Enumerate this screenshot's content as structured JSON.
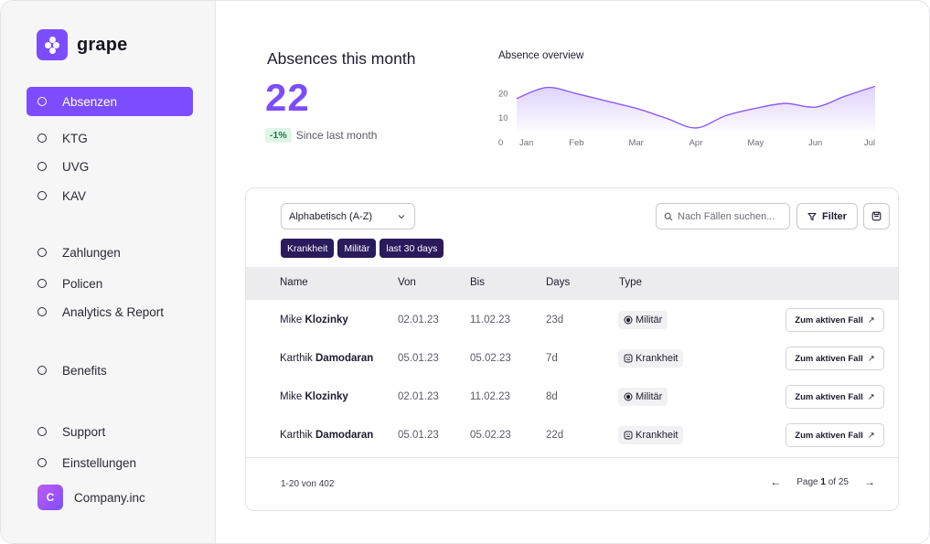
{
  "brand": {
    "name": "grape"
  },
  "sidebar": {
    "items": [
      {
        "label": "Absenzen",
        "active": true
      },
      {
        "label": "KTG"
      },
      {
        "label": "UVG"
      },
      {
        "label": "KAV"
      },
      {
        "label": "Zahlungen"
      },
      {
        "label": "Policen"
      },
      {
        "label": "Analytics & Report"
      },
      {
        "label": "Benefits"
      },
      {
        "label": "Support"
      },
      {
        "label": "Einstellungen"
      }
    ],
    "company": {
      "initial": "C",
      "name": "Company.inc"
    }
  },
  "stats": {
    "title": "Absences this month",
    "value": "22",
    "change": "-1%",
    "change_label": "Since last month"
  },
  "chart_data": {
    "type": "area",
    "title": "Absence overview",
    "categories": [
      "Jan",
      "Feb",
      "Mar",
      "Apr",
      "May",
      "Jun",
      "Jul"
    ],
    "y_ticks": [
      "0",
      "10",
      "20"
    ],
    "ylim": [
      0,
      25
    ],
    "x": [
      0,
      0.5,
      1,
      1.5,
      2,
      2.5,
      3,
      3.5,
      4,
      4.5,
      5,
      5.5,
      6
    ],
    "values": [
      18,
      22.5,
      20,
      17,
      14,
      10,
      6,
      11,
      14,
      16,
      14.5,
      19,
      23
    ],
    "color": "#8b5cf6"
  },
  "table": {
    "sort": {
      "value": "Alphabetisch (A-Z)"
    },
    "chips": [
      "Krankheit",
      "Militär",
      "last 30 days"
    ],
    "search": {
      "placeholder": "Nach Fällen suchen..."
    },
    "filter_label": "Filter",
    "columns": [
      "Name",
      "Von",
      "Bis",
      "Days",
      "Type"
    ],
    "rows": [
      {
        "first": "Mike",
        "last": "Klozinky",
        "von": "02.01.23",
        "bis": "11.02.23",
        "days": "23d",
        "type": "Militär",
        "type_icon": "shield-icon",
        "action": "Zum aktiven Fall"
      },
      {
        "first": "Karthik",
        "last": "Damodaran",
        "von": "05.01.23",
        "bis": "05.02.23",
        "days": "7d",
        "type": "Krankheit",
        "type_icon": "sick-icon",
        "action": "Zum aktiven Fall"
      },
      {
        "first": "Mike",
        "last": "Klozinky",
        "von": "02.01.23",
        "bis": "11.02.23",
        "days": "8d",
        "type": "Militär",
        "type_icon": "shield-icon",
        "action": "Zum aktiven Fall"
      },
      {
        "first": "Karthik",
        "last": "Damodaran",
        "von": "05.01.23",
        "bis": "05.02.23",
        "days": "22d",
        "type": "Krankheit",
        "type_icon": "sick-icon",
        "action": "Zum aktiven Fall"
      }
    ],
    "footer": {
      "range": "1-20 von 402",
      "page_prefix": "Page",
      "page_current": "1",
      "page_suffix": "of 25"
    }
  }
}
